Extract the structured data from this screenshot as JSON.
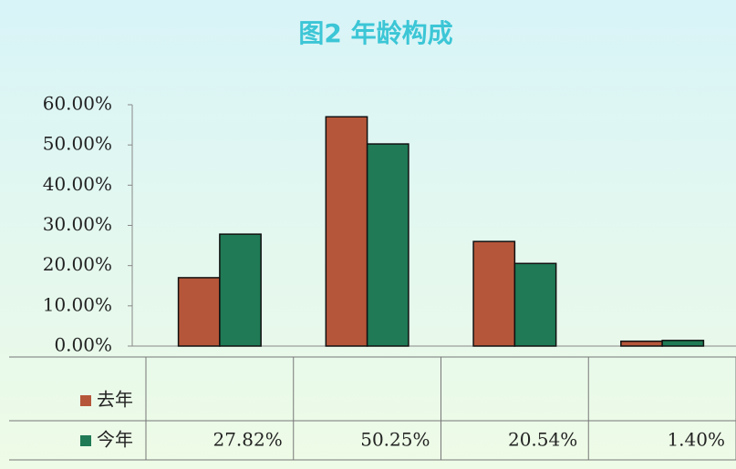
{
  "chart_data": {
    "type": "bar",
    "title": "图2 年龄构成",
    "categories": [
      null,
      null,
      null,
      null
    ],
    "series": [
      {
        "name": "去年",
        "color": "#b5563a",
        "values": [
          17,
          57,
          26,
          1.2
        ]
      },
      {
        "name": "今年",
        "color": "#1f7a55",
        "values": [
          27.82,
          50.25,
          20.54,
          1.4
        ],
        "value_labels": [
          "27.82%",
          "50.25%",
          "20.54%",
          "1.40%"
        ]
      }
    ],
    "ylim": [
      0,
      60
    ],
    "yticks": [
      {
        "value": 0,
        "label": "0.00%"
      },
      {
        "value": 10,
        "label": "10.00%"
      },
      {
        "value": 20,
        "label": "20.00%"
      },
      {
        "value": 30,
        "label": "30.00%"
      },
      {
        "value": 40,
        "label": "40.00%"
      },
      {
        "value": 50,
        "label": "50.00%"
      },
      {
        "value": 60,
        "label": "60.00%"
      }
    ]
  }
}
